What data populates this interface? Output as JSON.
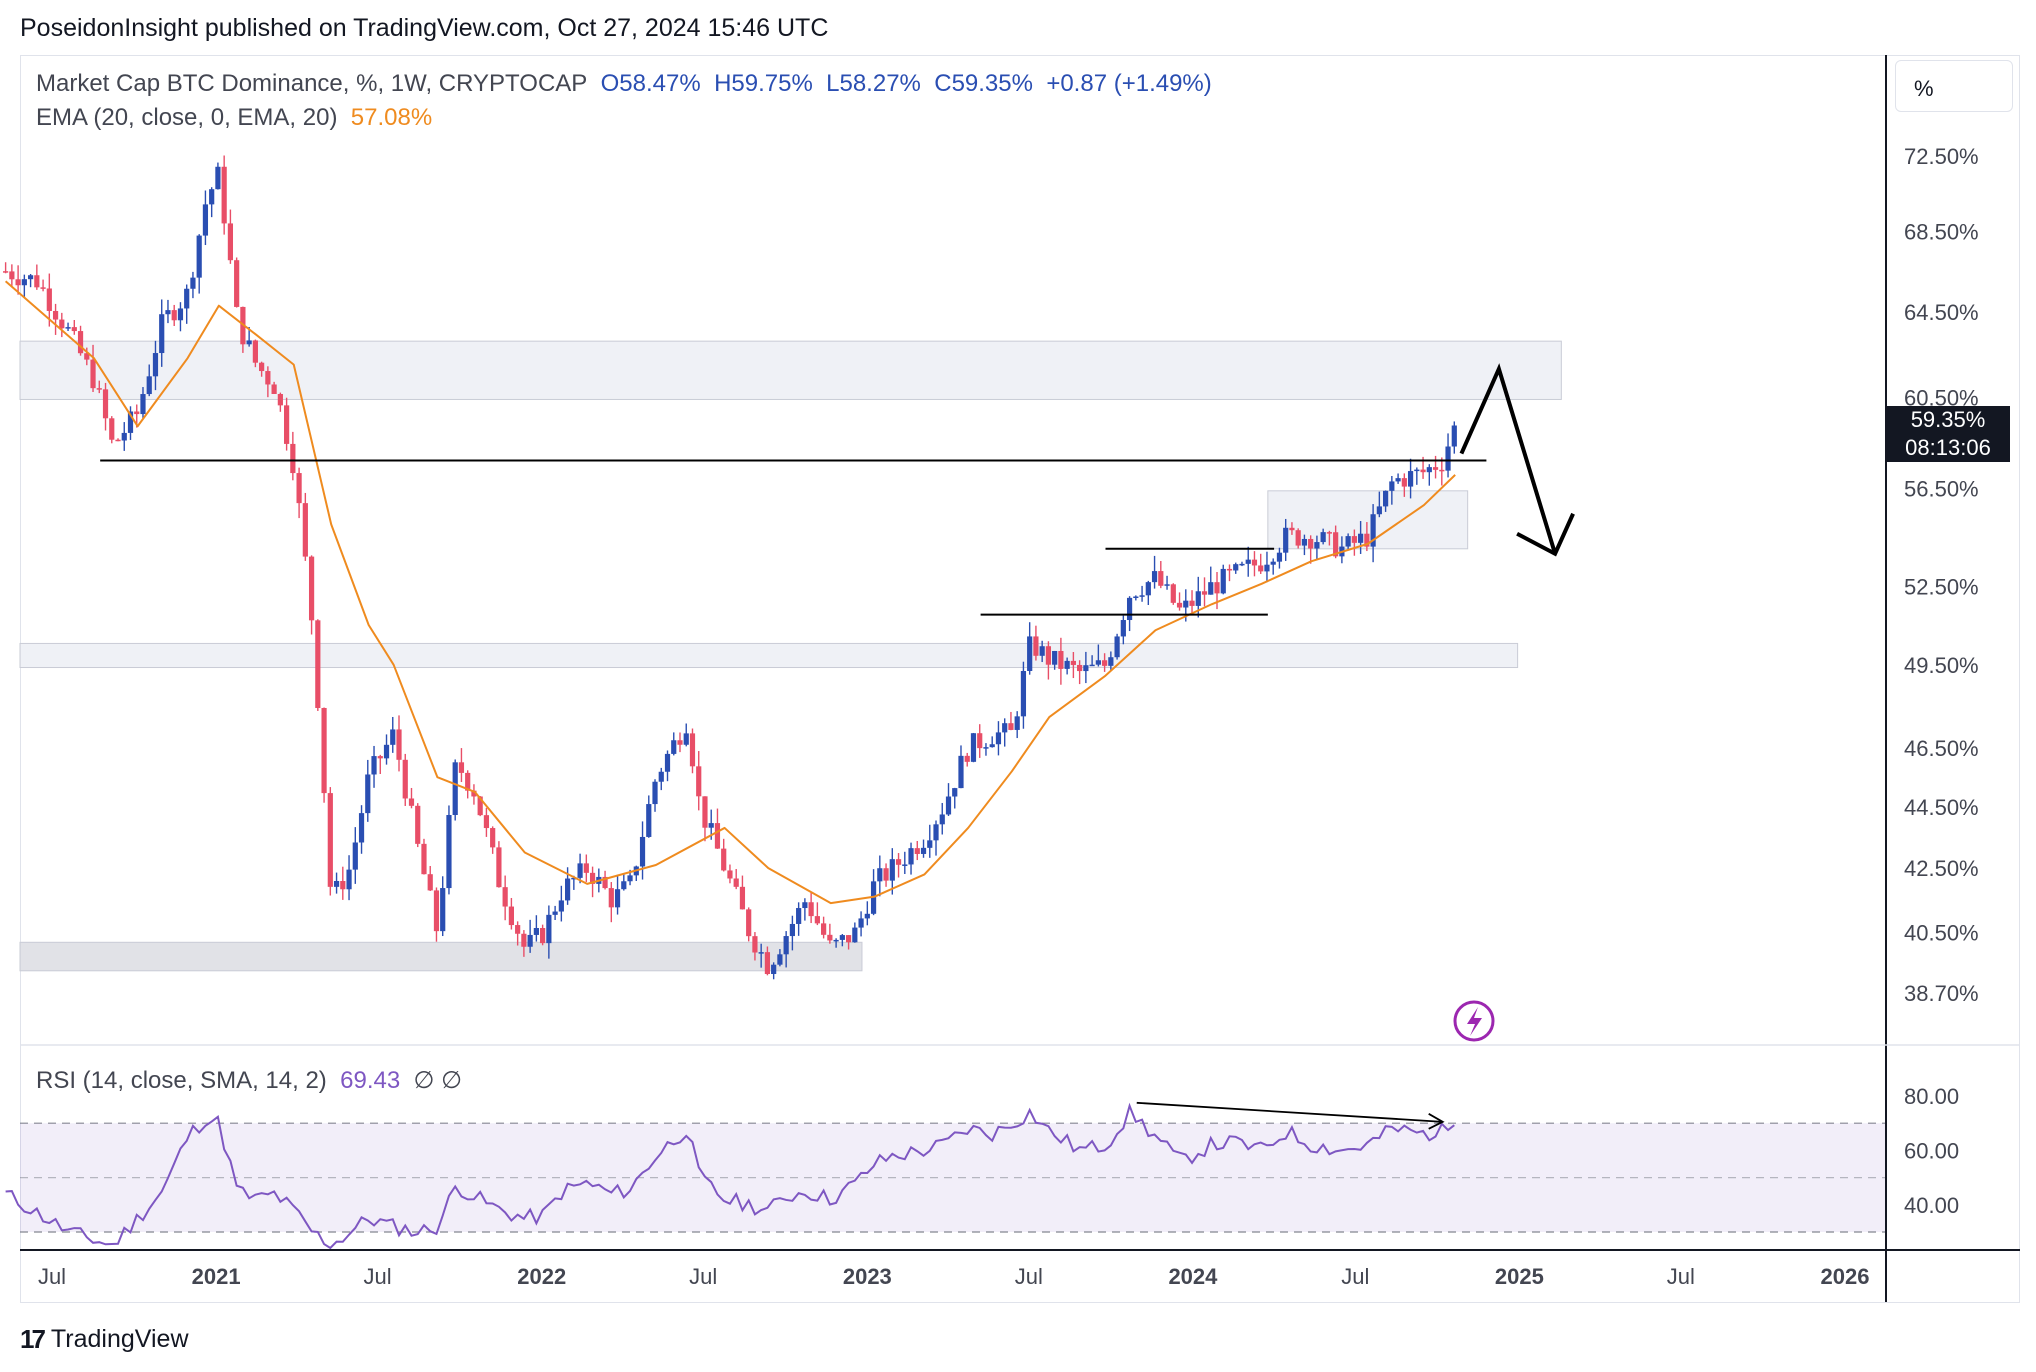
{
  "header": {
    "publisher_line": "PoseidonInsight published on TradingView.com, Oct 27, 2024 15:46 UTC"
  },
  "legend": {
    "symbol": "Market Cap BTC Dominance, %, 1W, CRYPTOCAP",
    "open": "O58.47%",
    "high": "H59.75%",
    "low": "L58.27%",
    "close": "C59.35%",
    "change": "+0.87 (+1.49%)",
    "ema_label": "EMA (20, close, 0, EMA, 20)",
    "ema_value": "57.08%",
    "rsi_label": "RSI (14, close, SMA, 14, 2)",
    "rsi_value": "69.43",
    "rsi_extra": "∅ ∅"
  },
  "toolbar": {
    "unit_button": "%"
  },
  "last_price": {
    "value": "59.35%",
    "countdown": "08:13:06"
  },
  "footer": {
    "logo_mark": "17",
    "logo_text": "TradingView"
  },
  "colors": {
    "up": "#2a4eb2",
    "down": "#e84e67",
    "ema": "#ef8b1f",
    "rsi": "#7e57c2",
    "zone": "#eceef5"
  },
  "chart_data": {
    "type": "candlestick",
    "title": "",
    "symbol": "Market Cap BTC Dominance",
    "interval": "1W",
    "y_axis_ticks": [
      "72.50%",
      "68.50%",
      "64.50%",
      "60.50%",
      "56.50%",
      "52.50%",
      "49.50%",
      "46.50%",
      "44.50%",
      "42.50%",
      "40.50%",
      "38.70%"
    ],
    "y_axis_values": [
      72.5,
      68.5,
      64.5,
      60.5,
      56.5,
      52.5,
      49.5,
      46.5,
      44.5,
      42.5,
      40.5,
      38.7
    ],
    "x_axis_ticks": [
      "Jul",
      "2021",
      "Jul",
      "2022",
      "Jul",
      "2023",
      "Jul",
      "2024",
      "Jul",
      "2025",
      "Jul",
      "2026"
    ],
    "x_axis_tick_dates": [
      "2020-07-01",
      "2021-01-01",
      "2021-07-01",
      "2022-01-01",
      "2022-07-01",
      "2023-01-01",
      "2023-07-01",
      "2024-01-01",
      "2024-07-01",
      "2025-01-01",
      "2025-07-01",
      "2026-01-01"
    ],
    "price_path": [
      [
        "2020-05-10",
        66.5
      ],
      [
        "2020-06-15",
        66.0
      ],
      [
        "2020-07-20",
        63.5
      ],
      [
        "2020-08-17",
        61.3
      ],
      [
        "2020-09-07",
        58.3
      ],
      [
        "2020-10-05",
        59.8
      ],
      [
        "2020-11-02",
        64.0
      ],
      [
        "2020-11-30",
        65.4
      ],
      [
        "2020-12-21",
        70.2
      ],
      [
        "2021-01-04",
        71.5
      ],
      [
        "2021-01-25",
        64.0
      ],
      [
        "2021-02-15",
        62.0
      ],
      [
        "2021-03-08",
        61.0
      ],
      [
        "2021-03-29",
        57.5
      ],
      [
        "2021-04-19",
        51.0
      ],
      [
        "2021-05-10",
        41.5
      ],
      [
        "2021-05-31",
        42.5
      ],
      [
        "2021-06-21",
        45.5
      ],
      [
        "2021-07-19",
        47.0
      ],
      [
        "2021-08-16",
        43.0
      ],
      [
        "2021-09-06",
        40.5
      ],
      [
        "2021-09-27",
        46.0
      ],
      [
        "2021-10-18",
        45.0
      ],
      [
        "2021-11-15",
        42.0
      ],
      [
        "2021-12-13",
        40.0
      ],
      [
        "2022-01-03",
        40.5
      ],
      [
        "2022-01-24",
        41.8
      ],
      [
        "2022-02-21",
        42.5
      ],
      [
        "2022-03-21",
        41.5
      ],
      [
        "2022-04-11",
        42.0
      ],
      [
        "2022-05-09",
        45.5
      ],
      [
        "2022-06-13",
        47.5
      ],
      [
        "2022-06-27",
        44.5
      ],
      [
        "2022-07-25",
        42.5
      ],
      [
        "2022-08-22",
        40.5
      ],
      [
        "2022-09-12",
        39.5
      ],
      [
        "2022-10-03",
        40.5
      ],
      [
        "2022-10-24",
        41.5
      ],
      [
        "2022-11-21",
        40.0
      ],
      [
        "2022-12-19",
        40.5
      ],
      [
        "2023-01-09",
        42.0
      ],
      [
        "2023-01-30",
        42.5
      ],
      [
        "2023-03-06",
        43.5
      ],
      [
        "2023-03-27",
        44.5
      ],
      [
        "2023-04-24",
        46.5
      ],
      [
        "2023-05-22",
        47.0
      ],
      [
        "2023-06-12",
        47.0
      ],
      [
        "2023-07-03",
        50.3
      ],
      [
        "2023-07-24",
        49.7
      ],
      [
        "2023-08-28",
        49.2
      ],
      [
        "2023-09-25",
        49.5
      ],
      [
        "2023-10-23",
        52.3
      ],
      [
        "2023-11-20",
        52.8
      ],
      [
        "2023-12-18",
        51.5
      ],
      [
        "2024-01-22",
        52.5
      ],
      [
        "2024-02-19",
        53.0
      ],
      [
        "2024-03-18",
        53.5
      ],
      [
        "2024-04-15",
        54.5
      ],
      [
        "2024-05-13",
        54.5
      ],
      [
        "2024-06-17",
        54.0
      ],
      [
        "2024-07-15",
        54.5
      ],
      [
        "2024-08-12",
        56.8
      ],
      [
        "2024-09-16",
        57.2
      ],
      [
        "2024-10-07",
        57.7
      ],
      [
        "2024-10-21",
        59.35
      ]
    ],
    "ema20_path": [
      [
        "2020-05-10",
        66.0
      ],
      [
        "2020-08-17",
        62.3
      ],
      [
        "2020-10-05",
        59.2
      ],
      [
        "2020-11-30",
        62.3
      ],
      [
        "2021-01-04",
        64.8
      ],
      [
        "2021-02-15",
        63.4
      ],
      [
        "2021-03-29",
        62.0
      ],
      [
        "2021-05-10",
        55.0
      ],
      [
        "2021-06-21",
        51.0
      ],
      [
        "2021-07-19",
        49.5
      ],
      [
        "2021-09-06",
        45.5
      ],
      [
        "2021-10-18",
        45.0
      ],
      [
        "2021-12-13",
        43.0
      ],
      [
        "2022-02-21",
        42.0
      ],
      [
        "2022-05-09",
        42.6
      ],
      [
        "2022-07-25",
        43.8
      ],
      [
        "2022-09-12",
        42.5
      ],
      [
        "2022-11-21",
        41.4
      ],
      [
        "2023-01-09",
        41.6
      ],
      [
        "2023-03-06",
        42.3
      ],
      [
        "2023-04-24",
        43.8
      ],
      [
        "2023-06-12",
        45.7
      ],
      [
        "2023-07-24",
        47.6
      ],
      [
        "2023-09-25",
        49.1
      ],
      [
        "2023-11-20",
        50.8
      ],
      [
        "2024-01-22",
        51.8
      ],
      [
        "2024-03-18",
        52.6
      ],
      [
        "2024-05-13",
        53.5
      ],
      [
        "2024-07-15",
        54.2
      ],
      [
        "2024-09-16",
        55.8
      ],
      [
        "2024-10-21",
        57.08
      ]
    ],
    "zones": [
      {
        "from": "2020-05-10",
        "to": "2025-02-17",
        "top": 63.1,
        "bottom": 60.4
      },
      {
        "from": "2020-05-10",
        "to": "2024-12-30",
        "top": 50.3,
        "bottom": 49.4
      },
      {
        "from": "2020-05-10",
        "to": "2022-12-26",
        "top": 40.2,
        "bottom": 39.35
      },
      {
        "from": "2024-03-25",
        "to": "2024-11-04",
        "top": 56.4,
        "bottom": 54.0
      }
    ],
    "horizontal_lines": [
      {
        "from": "2020-08-24",
        "to": "2024-11-25",
        "y": 57.7
      },
      {
        "from": "2023-05-08",
        "to": "2024-03-25",
        "y": 51.4
      },
      {
        "from": "2023-09-25",
        "to": "2024-04-01",
        "y": 54.0
      }
    ],
    "projection_arrow": [
      [
        "2024-10-28",
        58.0
      ],
      [
        "2024-12-09",
        61.8
      ],
      [
        "2025-02-10",
        53.8
      ]
    ],
    "rsi": {
      "y_axis_ticks": [
        "80.00",
        "60.00",
        "40.00"
      ],
      "y_axis_values": [
        80,
        60,
        40
      ],
      "band": [
        30,
        70
      ],
      "midline": 50,
      "path": [
        [
          "2020-05-10",
          44
        ],
        [
          "2020-07-20",
          30
        ],
        [
          "2020-09-07",
          25
        ],
        [
          "2020-10-05",
          35
        ],
        [
          "2020-11-02",
          45
        ],
        [
          "2020-11-30",
          65
        ],
        [
          "2020-12-21",
          72
        ],
        [
          "2021-01-04",
          70
        ],
        [
          "2021-01-25",
          45
        ],
        [
          "2021-02-15",
          42
        ],
        [
          "2021-03-08",
          44
        ],
        [
          "2021-03-29",
          38
        ],
        [
          "2021-04-19",
          30
        ],
        [
          "2021-05-10",
          25
        ],
        [
          "2021-05-31",
          30
        ],
        [
          "2021-06-21",
          35
        ],
        [
          "2021-07-19",
          32
        ],
        [
          "2021-08-16",
          30
        ],
        [
          "2021-09-06",
          32
        ],
        [
          "2021-09-27",
          47
        ],
        [
          "2021-10-18",
          43
        ],
        [
          "2021-11-15",
          38
        ],
        [
          "2021-12-13",
          35
        ],
        [
          "2022-01-03",
          36
        ],
        [
          "2022-01-24",
          45
        ],
        [
          "2022-02-21",
          48
        ],
        [
          "2022-03-21",
          44
        ],
        [
          "2022-04-11",
          46
        ],
        [
          "2022-05-09",
          58
        ],
        [
          "2022-06-13",
          68
        ],
        [
          "2022-06-27",
          50
        ],
        [
          "2022-07-25",
          42
        ],
        [
          "2022-08-22",
          40
        ],
        [
          "2022-09-12",
          38
        ],
        [
          "2022-10-03",
          43
        ],
        [
          "2022-10-24",
          45
        ],
        [
          "2022-11-21",
          42
        ],
        [
          "2022-12-19",
          48
        ],
        [
          "2023-01-09",
          55
        ],
        [
          "2023-01-30",
          58
        ],
        [
          "2023-03-06",
          60
        ],
        [
          "2023-03-27",
          62
        ],
        [
          "2023-04-24",
          68
        ],
        [
          "2023-05-22",
          66
        ],
        [
          "2023-06-12",
          70
        ],
        [
          "2023-07-03",
          74
        ],
        [
          "2023-07-24",
          67
        ],
        [
          "2023-08-28",
          60
        ],
        [
          "2023-09-25",
          62
        ],
        [
          "2023-10-23",
          74
        ],
        [
          "2023-11-20",
          65
        ],
        [
          "2023-12-18",
          56
        ],
        [
          "2024-01-22",
          62
        ],
        [
          "2024-02-19",
          63
        ],
        [
          "2024-03-18",
          60
        ],
        [
          "2024-04-15",
          67
        ],
        [
          "2024-05-13",
          62
        ],
        [
          "2024-06-17",
          60
        ],
        [
          "2024-07-15",
          62
        ],
        [
          "2024-08-12",
          68
        ],
        [
          "2024-09-16",
          66
        ],
        [
          "2024-10-07",
          67
        ],
        [
          "2024-10-21",
          69.43
        ]
      ],
      "divergence_line": [
        [
          "2023-10-30",
          77.5
        ],
        [
          "2024-10-07",
          70.5
        ]
      ]
    }
  }
}
